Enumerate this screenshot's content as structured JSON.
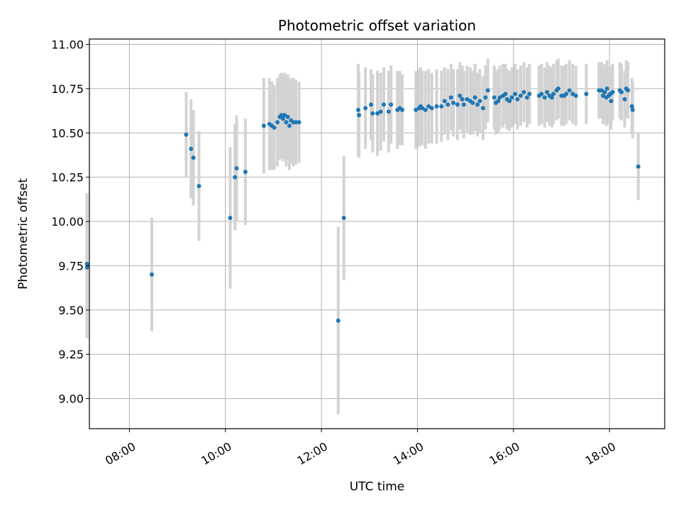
{
  "chart_data": {
    "type": "scatter",
    "title": "Photometric offset variation",
    "xlabel": "UTC time",
    "ylabel": "Photometric offset",
    "xlim": [
      "07:10",
      "19:09"
    ],
    "ylim": [
      8.83,
      11.03
    ],
    "x_ticks": [
      "08:00",
      "10:00",
      "12:00",
      "14:00",
      "16:00",
      "18:00"
    ],
    "y_ticks": [
      9.0,
      9.25,
      9.5,
      9.75,
      10.0,
      10.25,
      10.5,
      10.75,
      11.0
    ],
    "grid": true,
    "legend": "none",
    "marker_color": "#1f77b4",
    "errorbar_color": "#d3d3d3",
    "points": [
      {
        "x": "07:07",
        "y": 9.76,
        "err": 0.4
      },
      {
        "x": "07:07",
        "y": 9.74,
        "err": 0.4
      },
      {
        "x": "08:28",
        "y": 9.7,
        "err": 0.32
      },
      {
        "x": "09:11",
        "y": 10.49,
        "err": 0.24
      },
      {
        "x": "09:17",
        "y": 10.41,
        "err": 0.28
      },
      {
        "x": "09:20",
        "y": 10.36,
        "err": 0.27
      },
      {
        "x": "09:27",
        "y": 10.2,
        "err": 0.31
      },
      {
        "x": "10:06",
        "y": 10.02,
        "err": 0.4
      },
      {
        "x": "10:12",
        "y": 10.25,
        "err": 0.3
      },
      {
        "x": "10:14",
        "y": 10.3,
        "err": 0.3
      },
      {
        "x": "10:25",
        "y": 10.28,
        "err": 0.3
      },
      {
        "x": "10:48",
        "y": 10.54,
        "err": 0.27
      },
      {
        "x": "10:55",
        "y": 10.55,
        "err": 0.26
      },
      {
        "x": "10:58",
        "y": 10.54,
        "err": 0.25
      },
      {
        "x": "11:01",
        "y": 10.53,
        "err": 0.24
      },
      {
        "x": "11:05",
        "y": 10.56,
        "err": 0.25
      },
      {
        "x": "11:08",
        "y": 10.59,
        "err": 0.24
      },
      {
        "x": "11:10",
        "y": 10.6,
        "err": 0.24
      },
      {
        "x": "11:12",
        "y": 10.58,
        "err": 0.24
      },
      {
        "x": "11:14",
        "y": 10.6,
        "err": 0.24
      },
      {
        "x": "11:16",
        "y": 10.56,
        "err": 0.25
      },
      {
        "x": "11:18",
        "y": 10.59,
        "err": 0.24
      },
      {
        "x": "11:20",
        "y": 10.54,
        "err": 0.25
      },
      {
        "x": "11:22",
        "y": 10.57,
        "err": 0.24
      },
      {
        "x": "11:25",
        "y": 10.56,
        "err": 0.25
      },
      {
        "x": "11:28",
        "y": 10.56,
        "err": 0.24
      },
      {
        "x": "11:32",
        "y": 10.56,
        "err": 0.23
      },
      {
        "x": "12:21",
        "y": 9.44,
        "err": 0.53
      },
      {
        "x": "12:28",
        "y": 10.02,
        "err": 0.35
      },
      {
        "x": "12:46",
        "y": 10.63,
        "err": 0.26
      },
      {
        "x": "12:47",
        "y": 10.6,
        "err": 0.24
      },
      {
        "x": "12:55",
        "y": 10.64,
        "err": 0.23
      },
      {
        "x": "13:02",
        "y": 10.66,
        "err": 0.2
      },
      {
        "x": "13:04",
        "y": 10.61,
        "err": 0.22
      },
      {
        "x": "13:10",
        "y": 10.61,
        "err": 0.24
      },
      {
        "x": "13:14",
        "y": 10.62,
        "err": 0.22
      },
      {
        "x": "13:18",
        "y": 10.66,
        "err": 0.21
      },
      {
        "x": "13:24",
        "y": 10.62,
        "err": 0.23
      },
      {
        "x": "13:27",
        "y": 10.66,
        "err": 0.22
      },
      {
        "x": "13:35",
        "y": 10.63,
        "err": 0.22
      },
      {
        "x": "13:38",
        "y": 10.64,
        "err": 0.21
      },
      {
        "x": "13:41",
        "y": 10.63,
        "err": 0.2
      },
      {
        "x": "13:58",
        "y": 10.63,
        "err": 0.22
      },
      {
        "x": "14:02",
        "y": 10.64,
        "err": 0.22
      },
      {
        "x": "14:04",
        "y": 10.65,
        "err": 0.22
      },
      {
        "x": "14:06",
        "y": 10.64,
        "err": 0.21
      },
      {
        "x": "14:10",
        "y": 10.63,
        "err": 0.22
      },
      {
        "x": "14:14",
        "y": 10.65,
        "err": 0.21
      },
      {
        "x": "14:18",
        "y": 10.64,
        "err": 0.2
      },
      {
        "x": "14:24",
        "y": 10.65,
        "err": 0.21
      },
      {
        "x": "14:30",
        "y": 10.65,
        "err": 0.2
      },
      {
        "x": "14:34",
        "y": 10.68,
        "err": 0.19
      },
      {
        "x": "14:38",
        "y": 10.66,
        "err": 0.2
      },
      {
        "x": "14:42",
        "y": 10.7,
        "err": 0.19
      },
      {
        "x": "14:45",
        "y": 10.67,
        "err": 0.19
      },
      {
        "x": "14:50",
        "y": 10.66,
        "err": 0.2
      },
      {
        "x": "14:53",
        "y": 10.71,
        "err": 0.19
      },
      {
        "x": "14:56",
        "y": 10.69,
        "err": 0.19
      },
      {
        "x": "14:58",
        "y": 10.66,
        "err": 0.19
      },
      {
        "x": "15:02",
        "y": 10.69,
        "err": 0.19
      },
      {
        "x": "15:06",
        "y": 10.68,
        "err": 0.19
      },
      {
        "x": "15:09",
        "y": 10.67,
        "err": 0.18
      },
      {
        "x": "15:12",
        "y": 10.7,
        "err": 0.19
      },
      {
        "x": "15:15",
        "y": 10.66,
        "err": 0.18
      },
      {
        "x": "15:18",
        "y": 10.68,
        "err": 0.18
      },
      {
        "x": "15:22",
        "y": 10.64,
        "err": 0.18
      },
      {
        "x": "15:25",
        "y": 10.7,
        "err": 0.18
      },
      {
        "x": "15:28",
        "y": 10.74,
        "err": 0.18
      },
      {
        "x": "15:36",
        "y": 10.7,
        "err": 0.18
      },
      {
        "x": "15:38",
        "y": 10.67,
        "err": 0.18
      },
      {
        "x": "15:41",
        "y": 10.68,
        "err": 0.18
      },
      {
        "x": "15:43",
        "y": 10.7,
        "err": 0.18
      },
      {
        "x": "15:47",
        "y": 10.71,
        "err": 0.18
      },
      {
        "x": "15:50",
        "y": 10.72,
        "err": 0.17
      },
      {
        "x": "15:52",
        "y": 10.69,
        "err": 0.17
      },
      {
        "x": "15:55",
        "y": 10.68,
        "err": 0.17
      },
      {
        "x": "15:58",
        "y": 10.7,
        "err": 0.17
      },
      {
        "x": "16:02",
        "y": 10.72,
        "err": 0.17
      },
      {
        "x": "16:05",
        "y": 10.69,
        "err": 0.17
      },
      {
        "x": "16:09",
        "y": 10.71,
        "err": 0.17
      },
      {
        "x": "16:13",
        "y": 10.73,
        "err": 0.17
      },
      {
        "x": "16:17",
        "y": 10.7,
        "err": 0.17
      },
      {
        "x": "16:20",
        "y": 10.72,
        "err": 0.17
      },
      {
        "x": "16:32",
        "y": 10.71,
        "err": 0.17
      },
      {
        "x": "16:35",
        "y": 10.72,
        "err": 0.17
      },
      {
        "x": "16:39",
        "y": 10.7,
        "err": 0.17
      },
      {
        "x": "16:42",
        "y": 10.73,
        "err": 0.17
      },
      {
        "x": "16:45",
        "y": 10.71,
        "err": 0.17
      },
      {
        "x": "16:48",
        "y": 10.7,
        "err": 0.17
      },
      {
        "x": "16:50",
        "y": 10.72,
        "err": 0.17
      },
      {
        "x": "16:54",
        "y": 10.74,
        "err": 0.17
      },
      {
        "x": "16:56",
        "y": 10.75,
        "err": 0.17
      },
      {
        "x": "17:00",
        "y": 10.71,
        "err": 0.17
      },
      {
        "x": "17:03",
        "y": 10.71,
        "err": 0.17
      },
      {
        "x": "17:06",
        "y": 10.72,
        "err": 0.17
      },
      {
        "x": "17:10",
        "y": 10.74,
        "err": 0.17
      },
      {
        "x": "17:14",
        "y": 10.72,
        "err": 0.17
      },
      {
        "x": "17:18",
        "y": 10.71,
        "err": 0.17
      },
      {
        "x": "17:31",
        "y": 10.72,
        "err": 0.17
      },
      {
        "x": "17:47",
        "y": 10.74,
        "err": 0.16
      },
      {
        "x": "17:50",
        "y": 10.74,
        "err": 0.16
      },
      {
        "x": "17:52",
        "y": 10.71,
        "err": 0.16
      },
      {
        "x": "17:54",
        "y": 10.73,
        "err": 0.16
      },
      {
        "x": "17:56",
        "y": 10.7,
        "err": 0.16
      },
      {
        "x": "17:57",
        "y": 10.75,
        "err": 0.16
      },
      {
        "x": "17:59",
        "y": 10.71,
        "err": 0.16
      },
      {
        "x": "18:01",
        "y": 10.72,
        "err": 0.16
      },
      {
        "x": "18:02",
        "y": 10.68,
        "err": 0.16
      },
      {
        "x": "18:04",
        "y": 10.73,
        "err": 0.16
      },
      {
        "x": "18:13",
        "y": 10.74,
        "err": 0.16
      },
      {
        "x": "18:15",
        "y": 10.73,
        "err": 0.16
      },
      {
        "x": "18:19",
        "y": 10.69,
        "err": 0.16
      },
      {
        "x": "18:21",
        "y": 10.75,
        "err": 0.16
      },
      {
        "x": "18:23",
        "y": 10.74,
        "err": 0.16
      },
      {
        "x": "18:28",
        "y": 10.65,
        "err": 0.16
      },
      {
        "x": "18:29",
        "y": 10.63,
        "err": 0.16
      },
      {
        "x": "18:36",
        "y": 10.31,
        "err": 0.19
      }
    ]
  }
}
